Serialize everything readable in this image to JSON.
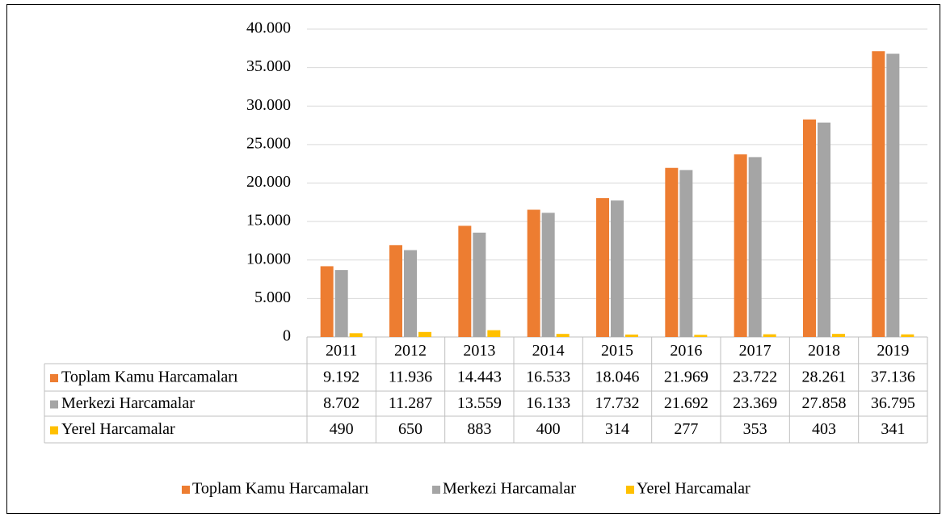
{
  "chart_data": {
    "type": "bar",
    "categories": [
      "2011",
      "2012",
      "2013",
      "2014",
      "2015",
      "2016",
      "2017",
      "2018",
      "2019"
    ],
    "series": [
      {
        "name": "Toplam Kamu Harcamaları",
        "color": "#ED7D31",
        "values": [
          9192,
          11936,
          14443,
          16533,
          18046,
          21969,
          23722,
          28261,
          37136
        ],
        "value_labels": [
          "9.192",
          "11.936",
          "14.443",
          "16.533",
          "18.046",
          "21.969",
          "23.722",
          "28.261",
          "37.136"
        ]
      },
      {
        "name": "Merkezi Harcamalar",
        "color": "#A5A5A5",
        "values": [
          8702,
          11287,
          13559,
          16133,
          17732,
          21692,
          23369,
          27858,
          36795
        ],
        "value_labels": [
          "8.702",
          "11.287",
          "13.559",
          "16.133",
          "17.732",
          "21.692",
          "23.369",
          "27.858",
          "36.795"
        ]
      },
      {
        "name": "Yerel Harcamalar",
        "color": "#FFC000",
        "values": [
          490,
          650,
          883,
          400,
          314,
          277,
          353,
          403,
          341
        ]
      }
    ],
    "ylim": [
      0,
      40000
    ],
    "yticks": [
      0,
      {
        "value": 5000,
        "label": "5.000"
      },
      {
        "value": 10000,
        "label": "10.000"
      },
      {
        "value": 15000,
        "label": "15.000"
      },
      {
        "value": 20000,
        "label": "20.000"
      },
      {
        "value": 25000,
        "label": "25.000"
      },
      {
        "value": 30000,
        "label": "30.000"
      },
      {
        "value": 35000,
        "label": "35.000"
      },
      {
        "value": 40000,
        "label": "40.000"
      }
    ],
    "grid": true,
    "legend": "bottom"
  }
}
